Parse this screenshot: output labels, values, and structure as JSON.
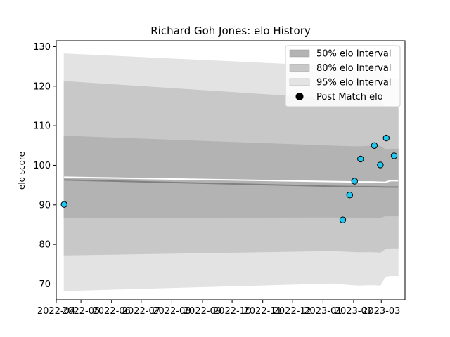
{
  "chart_data": {
    "type": "line",
    "title": "Richard Goh Jones: elo History",
    "xlabel": "",
    "ylabel": "elo score",
    "ylim": [
      66,
      131.5
    ],
    "xlim": [
      "2022-04-06",
      "2023-03-25"
    ],
    "y_ticks": [
      70,
      80,
      90,
      100,
      110,
      120,
      130
    ],
    "x_ticks": [
      {
        "date": "2022-04-01",
        "label": "2022-04"
      },
      {
        "date": "2022-05-01",
        "label": "2022-05"
      },
      {
        "date": "2022-06-01",
        "label": "2022-06"
      },
      {
        "date": "2022-07-01",
        "label": "2022-07"
      },
      {
        "date": "2022-08-01",
        "label": "2022-08"
      },
      {
        "date": "2022-09-01",
        "label": "2022-09"
      },
      {
        "date": "2022-10-01",
        "label": "2022-10"
      },
      {
        "date": "2022-11-01",
        "label": "2022-11"
      },
      {
        "date": "2022-12-01",
        "label": "2022-12"
      },
      {
        "date": "2023-01-01",
        "label": "2023-01"
      },
      {
        "date": "2023-02-01",
        "label": "2023-02"
      },
      {
        "date": "2023-03-01",
        "label": "2023-03"
      }
    ],
    "legend_position": "top-right",
    "legend": [
      {
        "label": "50% elo Interval",
        "kind": "band",
        "color": "#b3b3b3"
      },
      {
        "label": "80% elo Interval",
        "kind": "band",
        "color": "#c8c8c8"
      },
      {
        "label": "95% elo Interval",
        "kind": "band",
        "color": "#e3e3e3"
      },
      {
        "label": "Post Match elo",
        "kind": "marker",
        "color": "#000000"
      }
    ],
    "bands": [
      {
        "name": "95% elo Interval",
        "color": "#e3e3e3",
        "x": [
          "2022-04-14",
          "2023-01-10",
          "2023-02-05",
          "2023-02-20",
          "2023-02-28",
          "2023-03-05",
          "2023-03-10",
          "2023-03-18"
        ],
        "lower": [
          68.3,
          70.2,
          69.7,
          69.8,
          69.7,
          71.9,
          72.1,
          72.1
        ],
        "upper": [
          128.2,
          125.0,
          124.6,
          124.8,
          124.5,
          122.2,
          121.9,
          121.9
        ]
      },
      {
        "name": "80% elo Interval",
        "color": "#c8c8c8",
        "x": [
          "2022-04-14",
          "2023-01-10",
          "2023-02-05",
          "2023-02-20",
          "2023-02-28",
          "2023-03-05",
          "2023-03-10",
          "2023-03-18"
        ],
        "lower": [
          77.3,
          78.4,
          78.1,
          78.1,
          78.0,
          78.9,
          79.1,
          79.1
        ],
        "upper": [
          121.2,
          116.8,
          116.4,
          116.3,
          116.2,
          114.9,
          114.7,
          114.7
        ]
      },
      {
        "name": "50% elo Interval",
        "color": "#b3b3b3",
        "x": [
          "2022-04-14",
          "2023-01-10",
          "2023-02-05",
          "2023-02-20",
          "2023-02-28",
          "2023-03-05",
          "2023-03-10",
          "2023-03-18"
        ],
        "lower": [
          86.8,
          86.9,
          86.8,
          86.9,
          86.8,
          87.2,
          87.2,
          87.2
        ],
        "upper": [
          107.4,
          104.9,
          104.7,
          104.9,
          104.8,
          104.0,
          104.1,
          104.1
        ]
      }
    ],
    "series": [
      {
        "name": "Median elo",
        "color": "#808080",
        "x": [
          "2022-04-14",
          "2023-01-10",
          "2023-02-05",
          "2023-02-20",
          "2023-03-05",
          "2023-03-18"
        ],
        "y": [
          96.3,
          94.7,
          94.6,
          94.6,
          94.5,
          94.5
        ]
      },
      {
        "name": "Mean elo",
        "color": "#ffffff",
        "x": [
          "2022-04-14",
          "2023-01-10",
          "2023-02-05",
          "2023-02-20",
          "2023-03-05",
          "2023-03-10",
          "2023-03-18"
        ],
        "y": [
          97.0,
          95.9,
          95.8,
          95.8,
          95.7,
          96.1,
          96.1
        ]
      }
    ],
    "points": {
      "name": "Post Match elo",
      "color": "#1ec8f0",
      "edge": "#000000",
      "x": [
        "2022-04-14",
        "2023-01-21",
        "2023-01-28",
        "2023-02-02",
        "2023-02-08",
        "2023-02-22",
        "2023-02-28",
        "2023-03-06",
        "2023-03-14"
      ],
      "y": [
        90.1,
        86.2,
        92.5,
        96.0,
        101.6,
        105.0,
        100.1,
        106.9,
        102.4
      ]
    }
  }
}
